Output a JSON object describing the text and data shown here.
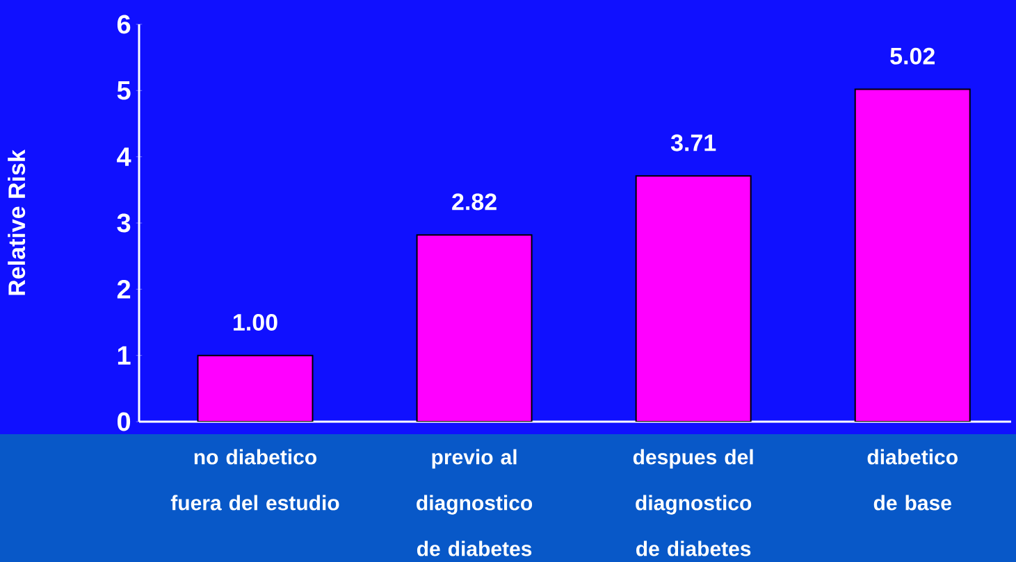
{
  "chart_data": {
    "type": "bar",
    "categories": [
      "no  diabetico fuera del estudio",
      "previo al diagnostico de diabetes",
      "despues del diagnostico de diabetes",
      "diabetico de base"
    ],
    "values": [
      1.0,
      2.82,
      3.71,
      5.02
    ],
    "color": "#ff00ff",
    "ylabel": "Relative Risk",
    "ylim": [
      0,
      6
    ],
    "yticks": [
      0,
      1,
      2,
      3,
      4,
      5,
      6
    ],
    "value_labels": [
      "1.00",
      "2.82",
      "3.71",
      "5.02"
    ]
  }
}
